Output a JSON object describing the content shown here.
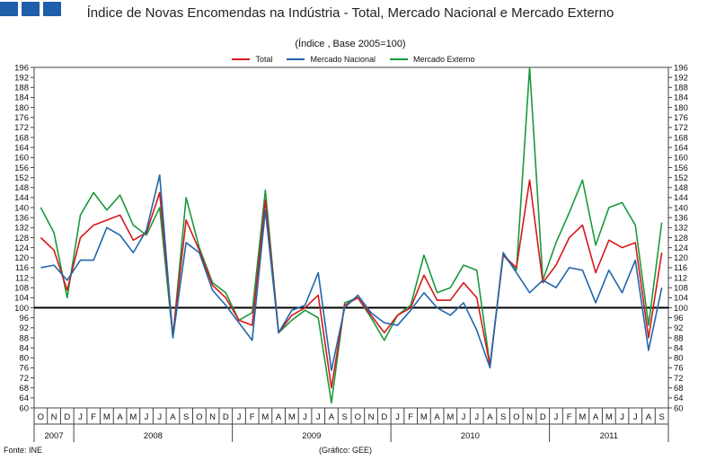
{
  "title": "Índice de Novas Encomendas na Indústria - Total, Mercado Nacional e Mercado Externo",
  "subtitle": "(Índice , Base 2005=100)",
  "source": "Fonte: INE",
  "credit": "(Gráfico: GEE)",
  "colors": {
    "total": "#d6191b",
    "nacional": "#2166ac",
    "externo": "#1a9a3c",
    "reference": "#000000"
  },
  "chart_data": {
    "type": "line",
    "title": "Índice de Novas Encomendas na Indústria - Total, Mercado Nacional e Mercado Externo",
    "subtitle": "(Índice , Base 2005=100)",
    "ylim": [
      60,
      196
    ],
    "ytick_step": 4,
    "reference_line": 100,
    "legend_position": "top-center",
    "months": [
      "O",
      "N",
      "D",
      "J",
      "F",
      "M",
      "A",
      "M",
      "J",
      "J",
      "A",
      "S",
      "O",
      "N",
      "D",
      "J",
      "F",
      "M",
      "A",
      "M",
      "J",
      "J",
      "A",
      "S",
      "O",
      "N",
      "D",
      "J",
      "F",
      "M",
      "A",
      "M",
      "J",
      "J",
      "A",
      "S",
      "O",
      "N",
      "D",
      "J",
      "F",
      "M",
      "A",
      "M",
      "J",
      "J",
      "A",
      "S"
    ],
    "years": [
      {
        "label": "2007",
        "start": 0,
        "end": 2
      },
      {
        "label": "2008",
        "start": 3,
        "end": 14
      },
      {
        "label": "2009",
        "start": 15,
        "end": 26
      },
      {
        "label": "2010",
        "start": 27,
        "end": 38
      },
      {
        "label": "2011",
        "start": 39,
        "end": 47
      }
    ],
    "series": [
      {
        "name": "Total",
        "key": "total",
        "values": [
          128,
          123,
          107,
          128,
          133,
          135,
          137,
          127,
          130,
          146,
          89,
          135,
          123,
          109,
          104,
          95,
          93,
          143,
          90,
          97,
          100,
          105,
          68,
          101,
          104,
          97,
          90,
          97,
          100,
          113,
          103,
          103,
          110,
          104,
          77,
          121,
          116,
          151,
          110,
          117,
          128,
          133,
          114,
          127,
          124,
          126,
          88,
          122
        ]
      },
      {
        "name": "Mercado Nacional",
        "key": "nacional",
        "values": [
          116,
          117,
          111,
          119,
          119,
          132,
          129,
          122,
          131,
          153,
          88,
          126,
          122,
          107,
          101,
          94,
          87,
          139,
          90,
          99,
          101,
          114,
          75,
          100,
          105,
          98,
          94,
          93,
          99,
          106,
          100,
          97,
          102,
          91,
          76,
          122,
          114,
          106,
          111,
          108,
          116,
          115,
          102,
          115,
          106,
          119,
          83,
          108
        ]
      },
      {
        "name": "Mercado Externo",
        "key": "externo",
        "values": [
          140,
          130,
          104,
          137,
          146,
          139,
          145,
          133,
          129,
          140,
          88,
          144,
          124,
          110,
          106,
          95,
          98,
          147,
          90,
          95,
          99,
          96,
          62,
          102,
          104,
          96,
          87,
          97,
          101,
          121,
          106,
          108,
          117,
          115,
          77,
          121,
          115,
          196,
          111,
          126,
          138,
          151,
          125,
          140,
          142,
          133,
          93,
          134
        ]
      }
    ]
  }
}
